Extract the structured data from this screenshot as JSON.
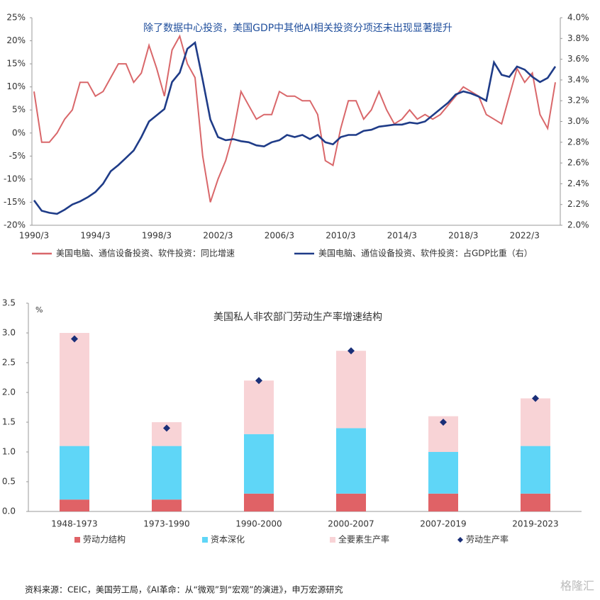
{
  "chart_data": [
    {
      "type": "line",
      "title": "除了数据中心投资，美国GDP中其他AI相关投资分项还未出现显著提升",
      "categories": [
        "1990/3",
        null,
        null,
        null,
        null,
        null,
        null,
        null,
        "1994/3",
        null,
        null,
        null,
        null,
        null,
        null,
        null,
        "1998/3",
        null,
        null,
        null,
        null,
        null,
        null,
        null,
        "2002/3",
        null,
        null,
        null,
        null,
        null,
        null,
        null,
        "2006/3",
        null,
        null,
        null,
        null,
        null,
        null,
        null,
        "2010/3",
        null,
        null,
        null,
        null,
        null,
        null,
        null,
        "2014/3",
        null,
        null,
        null,
        null,
        null,
        null,
        null,
        "2018/3",
        null,
        null,
        null,
        null,
        null,
        null,
        null,
        "2022/3",
        null,
        null,
        null,
        null
      ],
      "series": [
        {
          "name": "美国电脑、通信设备投资、软件投资：同比增速",
          "color": "#d9676a",
          "axis": "y",
          "values": [
            9,
            -2,
            -2,
            0,
            3,
            5,
            11,
            11,
            8,
            9,
            12,
            15,
            15,
            11,
            13,
            19,
            14,
            8,
            18,
            21,
            15,
            12,
            -5,
            -15,
            -10,
            -6,
            0,
            9,
            6,
            3,
            4,
            4,
            9,
            8,
            8,
            7,
            7,
            4,
            -6,
            -7,
            1,
            7,
            7,
            3,
            5,
            9,
            5,
            2,
            3,
            5,
            3,
            4,
            3,
            4,
            6,
            8,
            10,
            9,
            8,
            4,
            3,
            2,
            8,
            14,
            11,
            13,
            4,
            1,
            11
          ]
        },
        {
          "name": "美国电脑、通信设备投资、软件投资：占GDP比重（右）",
          "color": "#1f3c88",
          "axis": "y2",
          "values": [
            2.24,
            2.14,
            2.12,
            2.11,
            2.15,
            2.2,
            2.23,
            2.27,
            2.32,
            2.4,
            2.52,
            2.58,
            2.65,
            2.72,
            2.85,
            3.0,
            3.06,
            3.12,
            3.38,
            3.47,
            3.7,
            3.76,
            3.4,
            3.02,
            2.85,
            2.82,
            2.83,
            2.81,
            2.8,
            2.77,
            2.76,
            2.8,
            2.82,
            2.87,
            2.85,
            2.87,
            2.83,
            2.87,
            2.8,
            2.78,
            2.85,
            2.87,
            2.87,
            2.91,
            2.92,
            2.95,
            2.96,
            2.97,
            2.97,
            2.99,
            2.98,
            3.0,
            3.06,
            3.12,
            3.18,
            3.26,
            3.29,
            3.27,
            3.24,
            3.2,
            3.57,
            3.45,
            3.43,
            3.53,
            3.5,
            3.43,
            3.38,
            3.42,
            3.53
          ]
        }
      ],
      "ylim": [
        -20,
        25
      ],
      "yticks": [
        {
          "value": -20,
          "label": "-20%"
        },
        {
          "value": -15,
          "label": "-15%"
        },
        {
          "value": -10,
          "label": "-10%"
        },
        {
          "value": -5,
          "label": "-5%"
        },
        {
          "value": 0,
          "label": "0%"
        },
        {
          "value": 5,
          "label": "5%"
        },
        {
          "value": 10,
          "label": "10%"
        },
        {
          "value": 15,
          "label": "15%"
        },
        {
          "value": 20,
          "label": "20%"
        },
        {
          "value": 25,
          "label": "25%"
        }
      ],
      "y2lim": [
        2.0,
        4.0
      ],
      "y2ticks": [
        {
          "value": 2.0,
          "label": "2.0%"
        },
        {
          "value": 2.2,
          "label": "2.2%"
        },
        {
          "value": 2.4,
          "label": "2.4%"
        },
        {
          "value": 2.6,
          "label": "2.6%"
        },
        {
          "value": 2.8,
          "label": "2.8%"
        },
        {
          "value": 3.0,
          "label": "3.0%"
        },
        {
          "value": 3.2,
          "label": "3.2%"
        },
        {
          "value": 3.4,
          "label": "3.4%"
        },
        {
          "value": 3.6,
          "label": "3.6%"
        },
        {
          "value": 3.8,
          "label": "3.8%"
        },
        {
          "value": 4.0,
          "label": "4.0%"
        }
      ],
      "legend": "bottom"
    },
    {
      "type": "bar",
      "stacked": true,
      "title": "美国私人非农部门劳动生产率增速结构",
      "unit": "%",
      "categories": [
        "1948-1973",
        "1973-1990",
        "1990-2000",
        "2000-2007",
        "2007-2019",
        "2019-2023"
      ],
      "series": [
        {
          "name": "劳动力结构",
          "type": "bar",
          "color": "#e06266",
          "values": [
            0.2,
            0.2,
            0.3,
            0.3,
            0.3,
            0.3
          ]
        },
        {
          "name": "资本深化",
          "type": "bar",
          "color": "#5fd6f7",
          "values": [
            0.9,
            0.9,
            1.0,
            1.1,
            0.7,
            0.8
          ]
        },
        {
          "name": "全要素生产率",
          "type": "bar",
          "color": "#f8d3d6",
          "values": [
            1.9,
            0.4,
            0.9,
            1.3,
            0.6,
            0.8
          ]
        },
        {
          "name": "劳动生产率",
          "type": "scatter",
          "marker": "diamond",
          "color": "#1a2f78",
          "values": [
            2.9,
            1.4,
            2.2,
            2.7,
            1.5,
            1.9
          ]
        }
      ],
      "ylim": [
        0,
        3.5
      ],
      "yticks": [
        {
          "value": 0,
          "label": "0.0"
        },
        0.5,
        {
          "value": 1,
          "label": "1.0"
        },
        1.5,
        {
          "value": 2,
          "label": "2.0"
        },
        2.5,
        {
          "value": 3,
          "label": "3.0"
        },
        3.5
      ],
      "legend": "bottom"
    }
  ],
  "source": "资料来源：CEIC，美国劳工局，《AI革命：从“微观”到“宏观”的演进》，申万宏源研究",
  "watermark": "格隆汇"
}
